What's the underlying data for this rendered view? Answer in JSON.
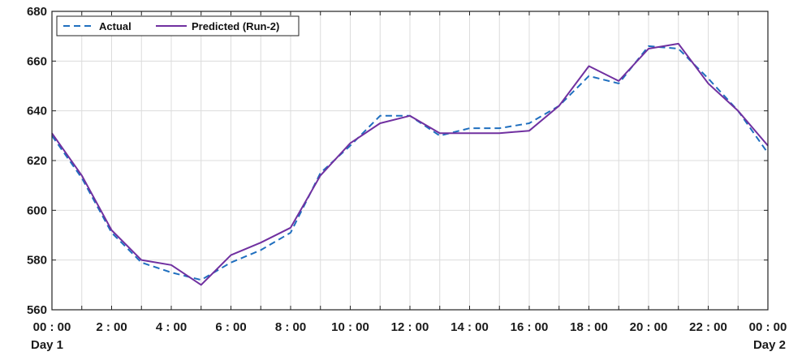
{
  "chart_data": {
    "type": "line",
    "x": [
      0,
      1,
      2,
      3,
      4,
      5,
      6,
      7,
      8,
      9,
      10,
      11,
      12,
      13,
      14,
      15,
      16,
      17,
      18,
      19,
      20,
      21,
      22,
      23,
      24
    ],
    "xticks": [
      0,
      2,
      4,
      6,
      8,
      10,
      12,
      14,
      16,
      18,
      20,
      22,
      24
    ],
    "xtick_labels": [
      "00 : 00",
      "2 : 00",
      "4 : 00",
      "6 : 00",
      "8 : 00",
      "10 : 00",
      "12 : 00",
      "14 : 00",
      "16 : 00",
      "18 : 00",
      "20 : 00",
      "22 : 00",
      "00 : 00"
    ],
    "xsublabels": {
      "start": "Day 1",
      "end": "Day 2"
    },
    "yticks": [
      560,
      580,
      600,
      620,
      640,
      660,
      680
    ],
    "ylim": [
      560,
      680
    ],
    "xlim": [
      0,
      24
    ],
    "grid": true,
    "legend_position": "top-left",
    "series": [
      {
        "name": "Actual",
        "style": "dashed",
        "color": "#1f6fbf",
        "values": [
          630,
          613,
          591,
          579,
          575,
          572,
          579,
          584,
          591,
          615,
          626,
          638,
          638,
          630,
          633,
          633,
          635,
          642,
          654,
          651,
          666,
          665,
          653,
          640,
          623
        ]
      },
      {
        "name": "Predicted (Run-2)",
        "style": "solid",
        "color": "#7030a0",
        "values": [
          631,
          614,
          592,
          580,
          578,
          570,
          582,
          587,
          593,
          614,
          627,
          635,
          638,
          631,
          631,
          631,
          632,
          642,
          658,
          652,
          665,
          667,
          651,
          640,
          626
        ]
      }
    ]
  }
}
